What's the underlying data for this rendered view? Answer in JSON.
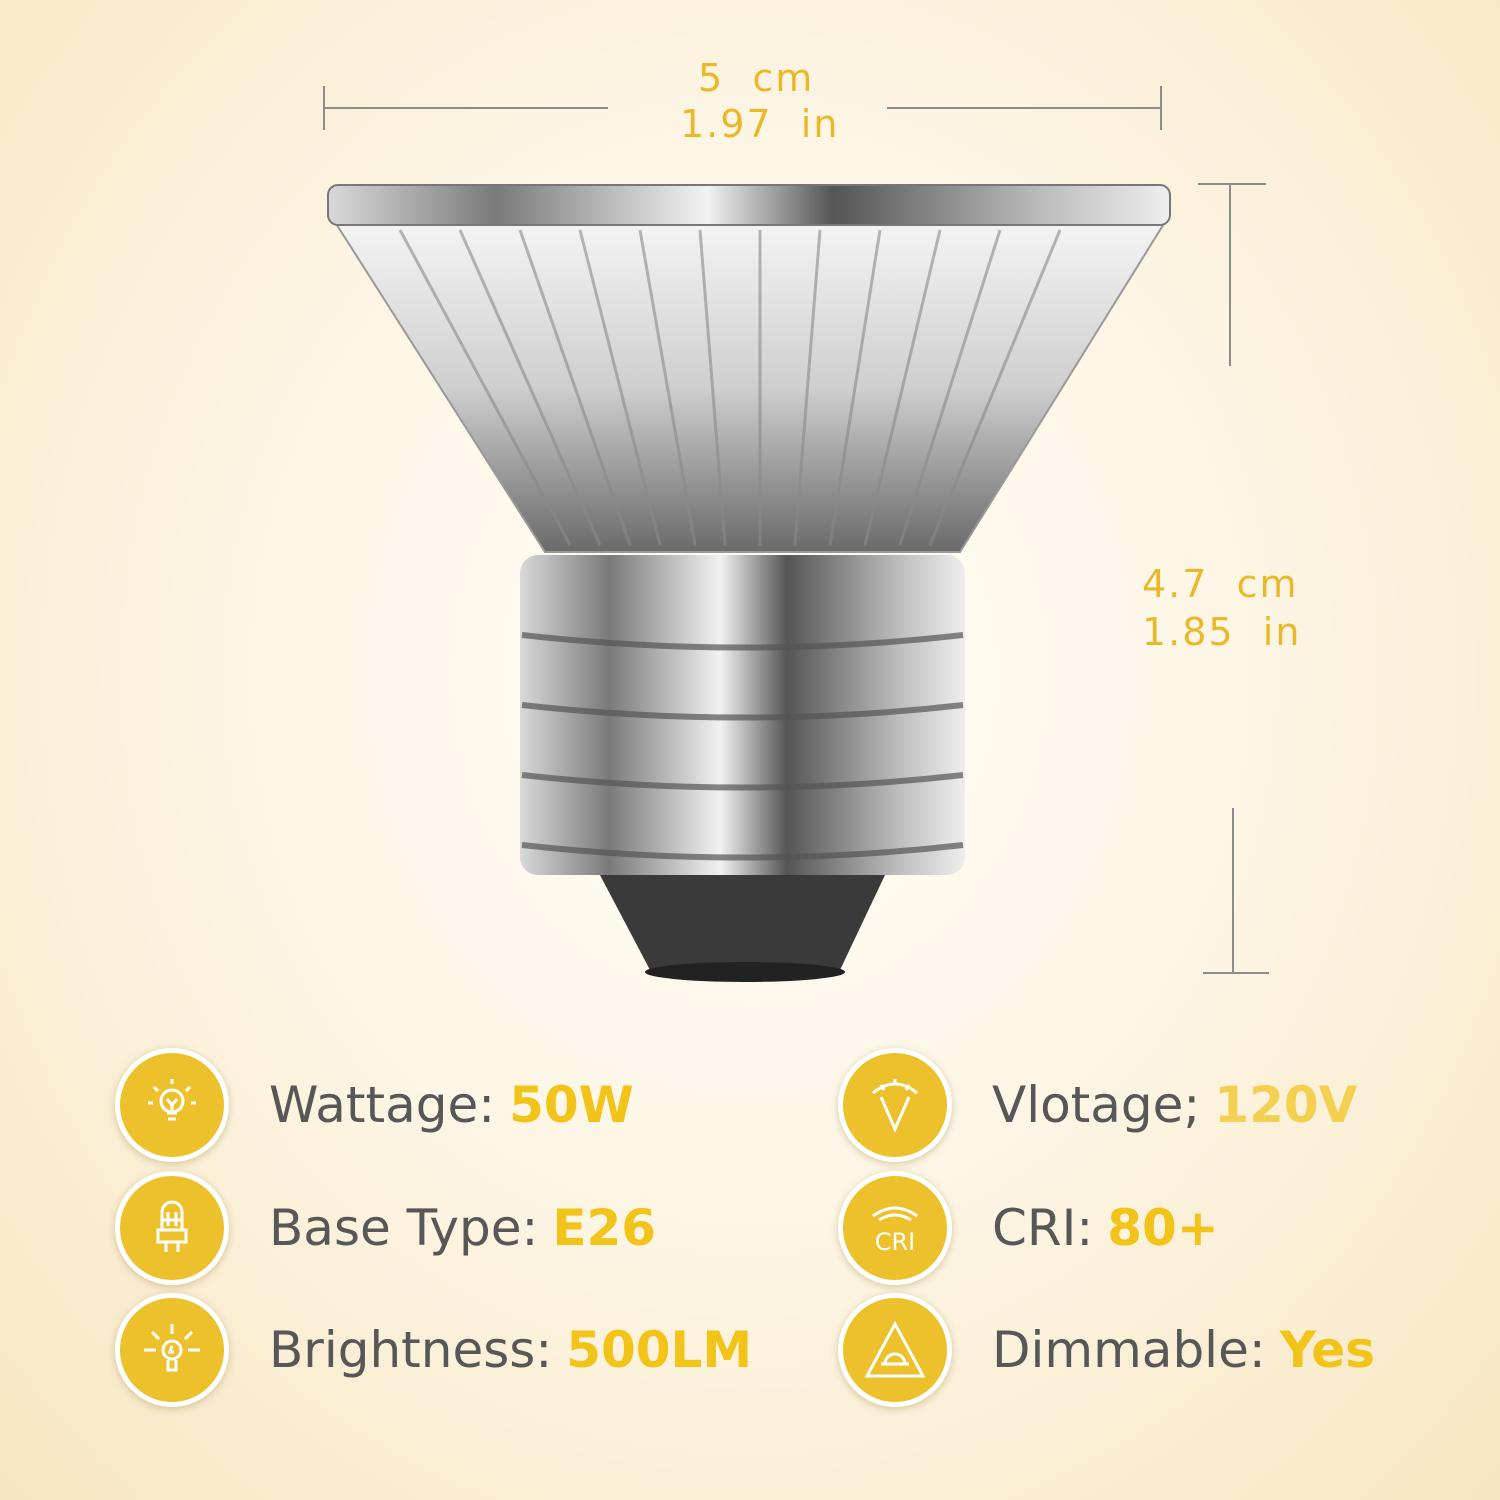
{
  "dimensions": {
    "width_cm": "5  cm",
    "width_in": "1.97  in",
    "height_cm": "4.7  cm",
    "height_in": "1.85  in"
  },
  "specs": [
    {
      "label": "Wattage:",
      "value": "50W",
      "icon": "light-bulb-icon"
    },
    {
      "label": "Base Type:",
      "value": "E26",
      "icon": "bulb-base-icon"
    },
    {
      "label": "Brightness:",
      "value": "500LM",
      "icon": "brightness-bulb-icon"
    },
    {
      "label": "Vlotage;",
      "value": "120V",
      "icon": "voltage-gauge-icon"
    },
    {
      "label": "CRI:",
      "value": "80+",
      "icon": "cri-icon",
      "icon_text": "CRI"
    },
    {
      "label": "Dimmable:",
      "value": "Yes",
      "icon": "dimmable-triangle-icon"
    }
  ],
  "colors": {
    "accent": "#f2c318",
    "text": "#575757",
    "icon_bg": "#ecc12b"
  }
}
